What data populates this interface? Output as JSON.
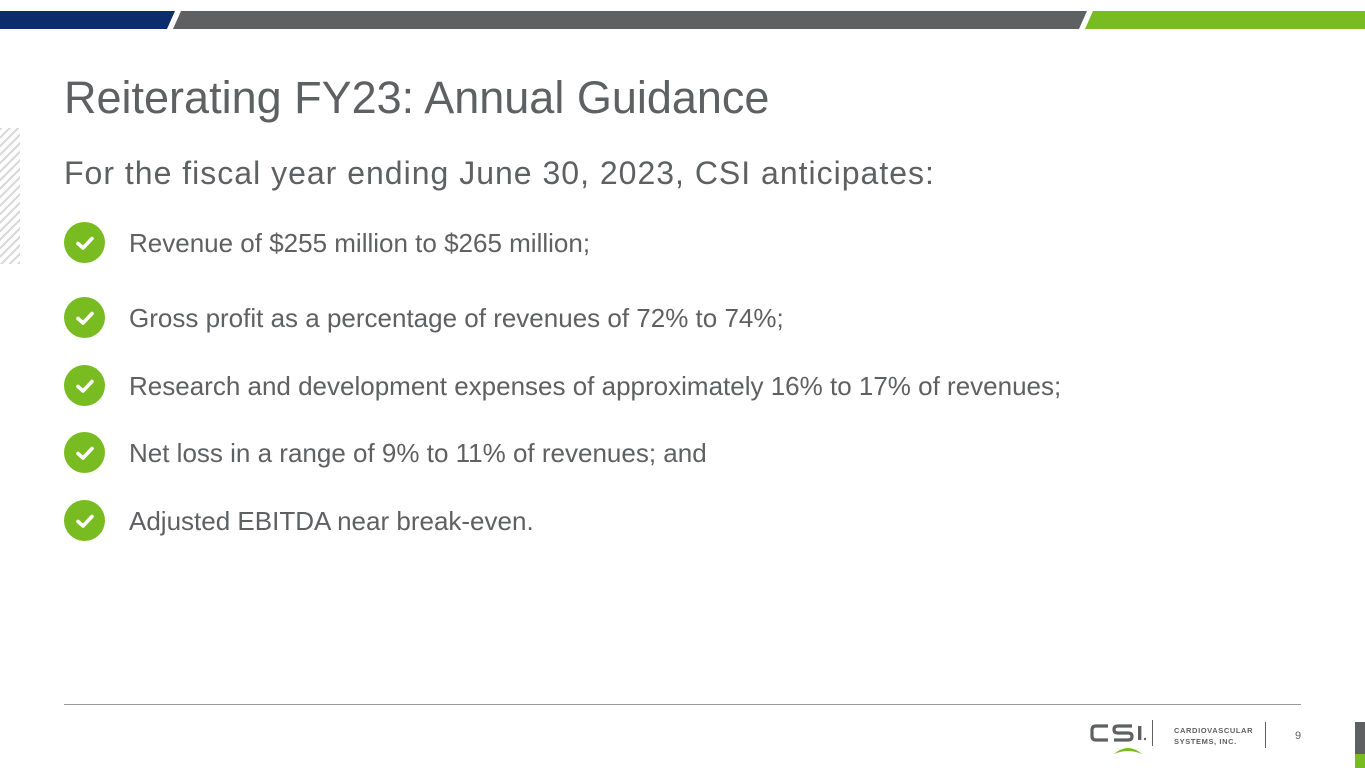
{
  "slide": {
    "title": "Reiterating FY23: Annual Guidance",
    "subtitle": "For the fiscal year ending June 30, 2023, CSI anticipates:",
    "bullets": [
      "Revenue of $255 million to $265 million;",
      "Gross profit as a percentage of revenues of 72% to 74%;",
      "Research and development expenses of approximately 16% to 17% of revenues;",
      "Net loss in a range of 9% to 11% of revenues; and",
      "Adjusted EBITDA near break-even."
    ],
    "page_number": "9"
  },
  "logo": {
    "mark": "CSI",
    "line1": "CARDIOVASCULAR",
    "line2": "SYSTEMS, INC."
  },
  "icons": {
    "bullet_icon": "check-circle-icon"
  },
  "colors": {
    "navy": "#0b2d6b",
    "gray": "#5f6062",
    "green": "#78bc21",
    "text": "#5f6062"
  }
}
